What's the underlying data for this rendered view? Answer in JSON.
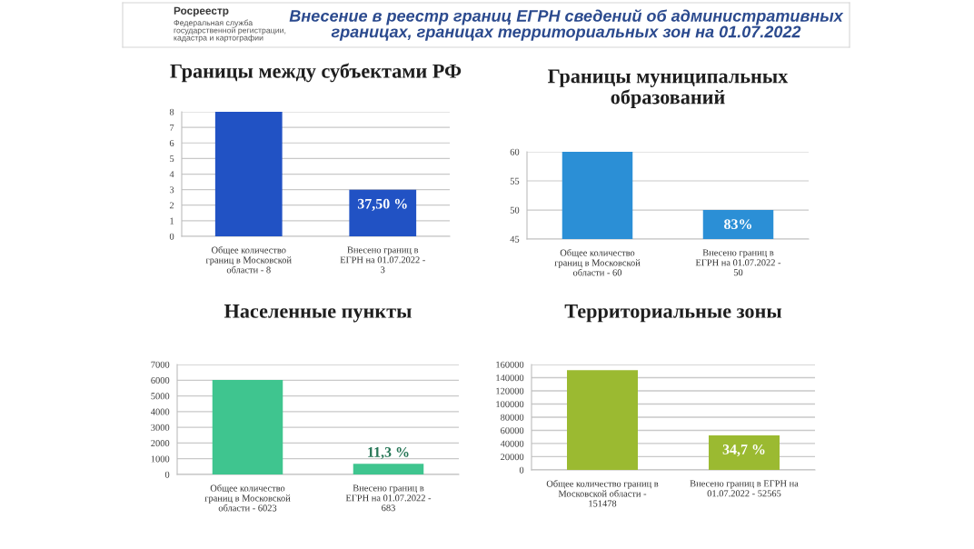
{
  "chart_data": [
    {
      "type": "other",
      "title": "Внесение в реестр границ ЕГРН сведений об административных границах, границах территориальных зон на 01.07.2022",
      "annotations": [
        "Росреестр",
        "Федеральная служба государственной регистрации, кадастра и картографии"
      ]
    },
    {
      "type": "bar",
      "title": "Границы между субъектами РФ",
      "categories": [
        "Общее количество границ в Московской области - 8",
        "Внесено границ в ЕГРН на 01.07.2022 - 3"
      ],
      "values": [
        8,
        3
      ],
      "color": "#2152c4",
      "annotations": [
        {
          "text": "37,50 %",
          "x": "Внесено границ в ЕГРН на 01.07.2022 - 3",
          "y": 3
        }
      ],
      "ylim": [
        0,
        8
      ],
      "yticks": [
        0,
        1,
        2,
        3,
        4,
        5,
        6,
        7,
        8
      ],
      "grid": "y"
    },
    {
      "type": "bar",
      "title": "Границы муниципальных образований",
      "categories": [
        "Общее количество границ в Московской области - 60",
        "Внесено границ в ЕГРН на 01.07.2022 - 50"
      ],
      "values": [
        60,
        50
      ],
      "color": "#2b8fd6",
      "annotations": [
        {
          "text": "83%",
          "x": "Внесено границ в ЕГРН на 01.07.2022 - 50",
          "y": 50
        }
      ],
      "ylim": [
        45,
        60
      ],
      "yticks": [
        45,
        50,
        55,
        60
      ],
      "grid": "y"
    },
    {
      "type": "bar",
      "title": "Населенные пункты",
      "categories": [
        "Общее количество границ в Московской области - 6023",
        "Внесено границ в ЕГРН на 01.07.2022 - 683"
      ],
      "values": [
        6023,
        683
      ],
      "color": "#3fc58f",
      "annotations": [
        {
          "text": "11,3 %",
          "x": "Внесено границ в ЕГРН на 01.07.2022 - 683",
          "y": 683
        }
      ],
      "ylim": [
        0,
        7000
      ],
      "yticks": [
        0,
        1000,
        2000,
        3000,
        4000,
        5000,
        6000,
        7000
      ],
      "grid": "y"
    },
    {
      "type": "bar",
      "title": "Территориальные зоны",
      "categories": [
        "Общее количество границ в Московской области - 151478",
        "Внесено границ в ЕГРН на 01.07.2022 - 52565"
      ],
      "values": [
        151478,
        52565
      ],
      "color": "#9bba31",
      "annotations": [
        {
          "text": "34,7 %",
          "x": "Внесено границ в ЕГРН на 01.07.2022 - 52565",
          "y": 52565
        }
      ],
      "ylim": [
        0,
        160000
      ],
      "yticks": [
        0,
        20000,
        40000,
        60000,
        80000,
        100000,
        120000,
        140000,
        160000
      ],
      "grid": "y"
    }
  ]
}
